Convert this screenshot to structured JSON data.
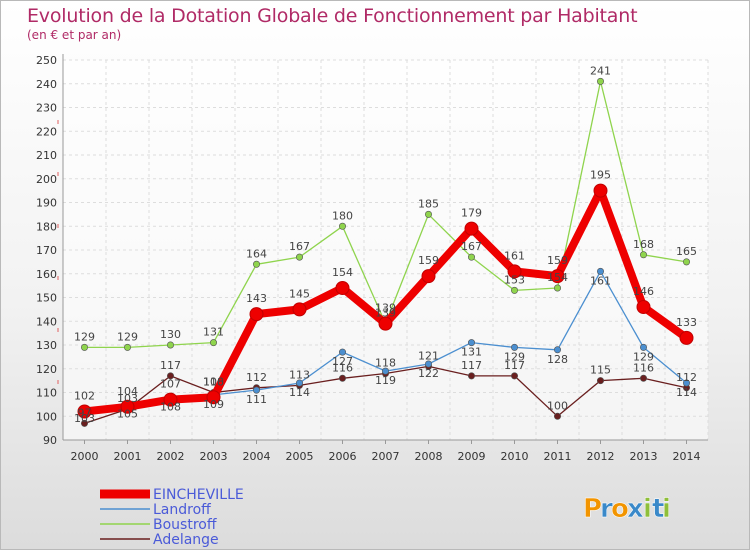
{
  "chart_data": {
    "type": "line",
    "title": "Evolution de la Dotation Globale de Fonctionnement par Habitant",
    "subtitle": "(en € et par an)",
    "xlabel": "",
    "ylabel": "",
    "ylim": [
      90,
      250
    ],
    "yticks": [
      90,
      100,
      110,
      120,
      130,
      140,
      150,
      160,
      170,
      180,
      190,
      200,
      210,
      220,
      230,
      240,
      250
    ],
    "categories": [
      "2000",
      "2001",
      "2002",
      "2003",
      "2004",
      "2005",
      "2006",
      "2007",
      "2008",
      "2009",
      "2010",
      "2011",
      "2012",
      "2013",
      "2014"
    ],
    "legend_position": "bottom-left",
    "grid": true,
    "series": [
      {
        "name": "EINCHEVILLE",
        "color": "#ee0000",
        "values": [
          102,
          104,
          107,
          108,
          143,
          145,
          154,
          139,
          159,
          179,
          161,
          159,
          195,
          146,
          133
        ]
      },
      {
        "name": "Landroff",
        "color": "#4b8fd0",
        "values": [
          103,
          105,
          108,
          109,
          111,
          114,
          127,
          119,
          122,
          131,
          129,
          128,
          161,
          129,
          114
        ]
      },
      {
        "name": "Boustroff",
        "color": "#8fd44d",
        "values": [
          129,
          129,
          130,
          131,
          164,
          167,
          180,
          139,
          185,
          167,
          153,
          154,
          241,
          168,
          165
        ]
      },
      {
        "name": "Adelange",
        "color": "#6a1f1f",
        "values": [
          97,
          103,
          117,
          110,
          112,
          113,
          116,
          118,
          121,
          117,
          117,
          100,
          115,
          116,
          112
        ]
      }
    ]
  },
  "logo": {
    "text": "Proxiti",
    "letters": [
      "P",
      "r",
      "o",
      "x",
      "i",
      "t",
      "i"
    ],
    "colors": [
      "#f29400",
      "#3a89c9",
      "#f29400",
      "#3a89c9",
      "#8fbf3a",
      "#3a89c9",
      "#8fbf3a"
    ]
  }
}
